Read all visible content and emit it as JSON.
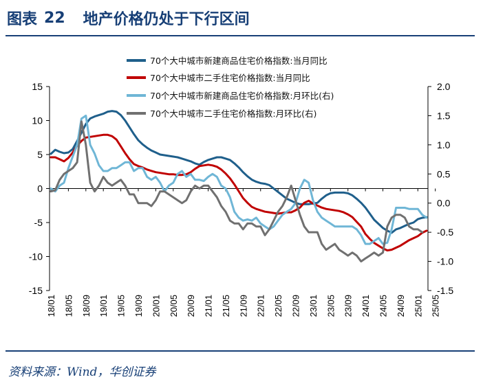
{
  "header": {
    "label": "图表",
    "number": "22",
    "title": "地产价格仍处于下行区间"
  },
  "source": "资料来源：Wind，华创证券",
  "chart_data": {
    "type": "line",
    "left_axis": {
      "ylim": [
        -15,
        15
      ],
      "ticks": [
        "15",
        "10",
        "5",
        "0",
        "-5",
        "-10",
        "-15"
      ]
    },
    "right_axis": {
      "ylim": [
        -1.5,
        2.0
      ],
      "ticks": [
        "2.0",
        "1.5",
        "1.0",
        "0.5",
        "0.0",
        "-0.5",
        "-1.0",
        "-1.5"
      ]
    },
    "x_tick_labels": [
      "18/01",
      "18/05",
      "18/09",
      "19/01",
      "19/05",
      "19/09",
      "20/01",
      "20/05",
      "20/09",
      "21/01",
      "21/05",
      "21/09",
      "22/01",
      "22/05",
      "22/09",
      "23/01",
      "23/05",
      "23/09",
      "24/01",
      "24/05",
      "24/09",
      "25/01",
      "25/05"
    ],
    "legend": [
      "70个大中城市新建商品住宅价格指数:当月同比",
      "70个大中城市二手住宅价格指数:当月同比",
      "70个大中城市新建商品住宅价格指数:月环比(右)",
      "70个大中城市二手住宅价格指数:月环比(右)"
    ],
    "series": [
      {
        "name": "70个大中城市新建商品住宅价格指数:当月同比",
        "axis": "left",
        "color": "#1f5f8b",
        "values": [
          5.1,
          5.7,
          5.4,
          5.2,
          5.3,
          5.8,
          7,
          8.2,
          9.5,
          10.3,
          10.6,
          10.8,
          11,
          11.3,
          11.4,
          11.3,
          10.8,
          10,
          9,
          8,
          7.1,
          6.5,
          6,
          5.6,
          5.3,
          5,
          4.9,
          4.8,
          4.7,
          4.6,
          4.4,
          4.2,
          4,
          3.7,
          3.5,
          3.9,
          4.2,
          4.4,
          4.6,
          4.6,
          4.4,
          4.2,
          3.7,
          3.1,
          2.4,
          1.8,
          1.3,
          1,
          0.8,
          0.7,
          0.5,
          0,
          -0.5,
          -1,
          -1.5,
          -1.8,
          -2.1,
          -2.3,
          -2.3,
          -2.3,
          -2.2,
          -2.1,
          -1.5,
          -1,
          -0.7,
          -0.6,
          -0.6,
          -0.6,
          -0.7,
          -1,
          -1.5,
          -2.1,
          -2.8,
          -3.7,
          -4.6,
          -5.2,
          -5.8,
          -6.2,
          -6.5,
          -6,
          -5.8,
          -5.5,
          -5.2,
          -5,
          -4.5,
          -4.3,
          -4.2
        ]
      },
      {
        "name": "70个大中城市二手住宅价格指数:当月同比",
        "axis": "left",
        "color": "#c00000",
        "values": [
          4.6,
          4.6,
          4.3,
          4,
          4.5,
          5.3,
          6.3,
          7,
          7.5,
          7.6,
          7.7,
          7.8,
          7.9,
          7.9,
          7.7,
          7.2,
          6.2,
          5.2,
          4.3,
          3.6,
          3.3,
          3.1,
          2.8,
          2.6,
          2.4,
          2.3,
          2.2,
          2.1,
          2.1,
          2,
          2,
          2.1,
          2.4,
          2.9,
          3.3,
          3.4,
          3.5,
          3.4,
          3.2,
          2.8,
          2.2,
          1.5,
          0.6,
          -0.4,
          -1.4,
          -2.1,
          -2.7,
          -3,
          -3.2,
          -3.4,
          -3.5,
          -3.6,
          -3.7,
          -3.6,
          -3.5,
          -3.5,
          -3.2,
          -2.8,
          -2.1,
          -1.8,
          -2.2,
          -2.5,
          -2.8,
          -3,
          -3.1,
          -3.2,
          -3.3,
          -3.5,
          -3.8,
          -4.2,
          -4.9,
          -5.6,
          -6.7,
          -7.4,
          -8,
          -8.4,
          -8.8,
          -9.1,
          -9,
          -8.7,
          -8.4,
          -8,
          -7.6,
          -7.3,
          -7,
          -6.5,
          -6.2
        ]
      },
      {
        "name": "70个大中城市新建商品住宅价格指数:月环比(右)",
        "axis": "right",
        "color": "#6fb6d6",
        "values": [
          0.25,
          0.2,
          0.3,
          0.35,
          0.6,
          0.8,
          1,
          1.45,
          1.5,
          1,
          0.85,
          0.65,
          0.55,
          0.55,
          0.6,
          0.6,
          0.65,
          0.7,
          0.7,
          0.55,
          0.6,
          0.6,
          0.45,
          0.4,
          0.45,
          0.35,
          0.2,
          0.3,
          0.35,
          0.5,
          0.55,
          0.45,
          0.5,
          0.4,
          0.4,
          0.38,
          0.45,
          0.5,
          0.45,
          0.3,
          0.25,
          0.1,
          -0.15,
          -0.25,
          -0.3,
          -0.28,
          -0.3,
          -0.25,
          -0.35,
          -0.4,
          -0.45,
          -0.4,
          -0.3,
          -0.2,
          -0.15,
          -0.1,
          0,
          0.25,
          0.4,
          0.35,
          0.05,
          -0.15,
          -0.25,
          -0.3,
          -0.35,
          -0.4,
          -0.4,
          -0.4,
          -0.4,
          -0.4,
          -0.45,
          -0.55,
          -0.7,
          -0.7,
          -0.65,
          -0.6,
          -0.7,
          -0.68,
          -0.45,
          -0.08,
          -0.08,
          -0.08,
          -0.1,
          -0.1,
          -0.1,
          -0.2,
          -0.25
        ]
      },
      {
        "name": "70个大中城市二手住宅价格指数:月环比(右)",
        "axis": "right",
        "color": "#707070",
        "values": [
          0.2,
          0.22,
          0.4,
          0.5,
          0.55,
          0.6,
          0.7,
          1.4,
          1,
          0.35,
          0.2,
          0.3,
          0.45,
          0.35,
          0.3,
          0.35,
          0.4,
          0.3,
          0.15,
          0.15,
          0,
          0,
          0,
          -0.05,
          0.05,
          0.2,
          0.2,
          0.15,
          0.1,
          0.05,
          0,
          0.05,
          0.2,
          0.3,
          0.25,
          0.3,
          0.3,
          0.2,
          0.1,
          -0.05,
          -0.15,
          -0.3,
          -0.35,
          -0.35,
          -0.45,
          -0.35,
          -0.35,
          -0.4,
          -0.4,
          -0.55,
          -0.45,
          -0.3,
          -0.15,
          -0.05,
          0.1,
          0.3,
          0.05,
          -0.2,
          -0.4,
          -0.5,
          -0.5,
          -0.5,
          -0.7,
          -0.8,
          -0.75,
          -0.7,
          -0.8,
          -0.85,
          -0.9,
          -0.85,
          -0.9,
          -1,
          -0.95,
          -0.9,
          -0.85,
          -0.9,
          -0.85,
          -0.4,
          -0.25,
          -0.2,
          -0.2,
          -0.25,
          -0.4,
          -0.45,
          -0.45,
          -0.5
        ]
      }
    ]
  }
}
